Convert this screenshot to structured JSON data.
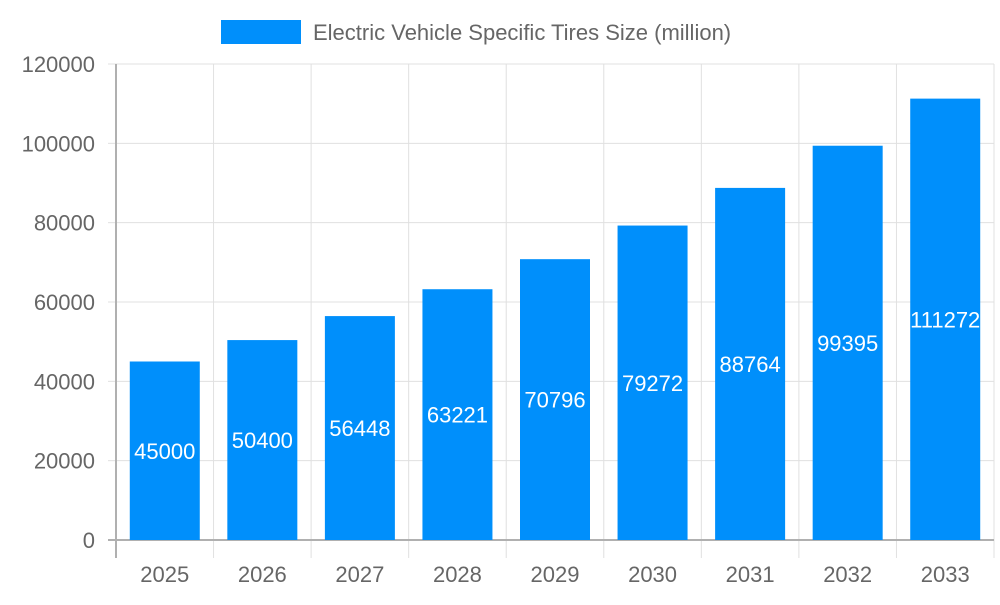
{
  "chart_data": {
    "type": "bar",
    "categories": [
      "2025",
      "2026",
      "2027",
      "2028",
      "2029",
      "2030",
      "2031",
      "2032",
      "2033"
    ],
    "series": [
      {
        "name": "Electric Vehicle Specific Tires Size (million)",
        "values": [
          45000,
          50400,
          56448,
          63221,
          70796,
          79272,
          88764,
          99395,
          111272
        ]
      }
    ],
    "ylim": [
      0,
      120000
    ],
    "yticks": [
      0,
      20000,
      40000,
      60000,
      80000,
      100000,
      120000
    ],
    "grid": true,
    "legend": "top",
    "data_labels": true,
    "colors": {
      "bar": "#008ffb",
      "label": "#ffffff",
      "axis_text": "#666666",
      "grid": "#e0e0e0"
    }
  }
}
